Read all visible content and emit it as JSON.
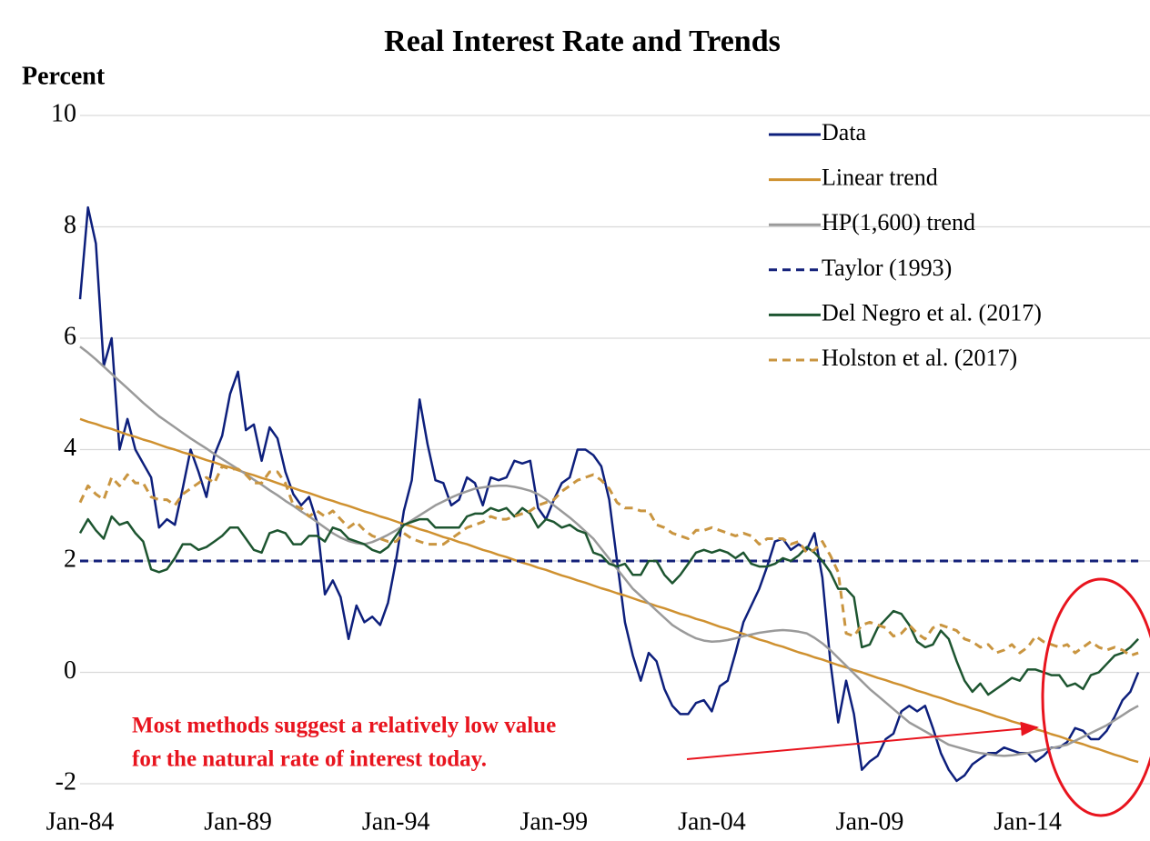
{
  "chart_data": {
    "type": "line",
    "title": "Real Interest Rate and Trends",
    "y_label": "Percent",
    "annotation": [
      "Most methods suggest a relatively low value",
      "for the natural rate of interest today."
    ],
    "ylim": [
      -2,
      10
    ],
    "yticks": [
      -2,
      0,
      2,
      4,
      6,
      8,
      10
    ],
    "grid": true,
    "legend": "top-right",
    "categories": [
      "Jan-84",
      null,
      null,
      null,
      null,
      null,
      null,
      null,
      null,
      null,
      null,
      null,
      null,
      null,
      null,
      null,
      null,
      null,
      null,
      null,
      "Jan-89",
      null,
      null,
      null,
      null,
      null,
      null,
      null,
      null,
      null,
      null,
      null,
      null,
      null,
      null,
      null,
      null,
      null,
      null,
      null,
      "Jan-94",
      null,
      null,
      null,
      null,
      null,
      null,
      null,
      null,
      null,
      null,
      null,
      null,
      null,
      null,
      null,
      null,
      null,
      null,
      null,
      "Jan-99",
      null,
      null,
      null,
      null,
      null,
      null,
      null,
      null,
      null,
      null,
      null,
      null,
      null,
      null,
      null,
      null,
      null,
      null,
      null,
      "Jan-04",
      null,
      null,
      null,
      null,
      null,
      null,
      null,
      null,
      null,
      null,
      null,
      null,
      null,
      null,
      null,
      null,
      null,
      null,
      null,
      "Jan-09",
      null,
      null,
      null,
      null,
      null,
      null,
      null,
      null,
      null,
      null,
      null,
      null,
      null,
      null,
      null,
      null,
      null,
      null,
      null,
      "Jan-14",
      null,
      null,
      null,
      null,
      null,
      null,
      null,
      null,
      null,
      null,
      null,
      null,
      null,
      null
    ],
    "series": [
      {
        "name": "Data",
        "color": "#0d1f7c",
        "style": "solid",
        "values": [
          6.7,
          8.35,
          7.7,
          5.5,
          6.0,
          4.0,
          4.55,
          4.0,
          3.75,
          3.5,
          2.6,
          2.75,
          2.65,
          3.3,
          4.0,
          3.6,
          3.15,
          3.9,
          4.25,
          5.0,
          5.4,
          4.35,
          4.45,
          3.8,
          4.4,
          4.2,
          3.6,
          3.2,
          3.0,
          3.15,
          2.7,
          1.4,
          1.65,
          1.35,
          0.6,
          1.2,
          0.9,
          1.0,
          0.85,
          1.25,
          2.0,
          2.9,
          3.45,
          4.9,
          4.1,
          3.45,
          3.4,
          3.0,
          3.1,
          3.5,
          3.4,
          3.0,
          3.5,
          3.45,
          3.5,
          3.8,
          3.75,
          3.8,
          2.95,
          2.75,
          3.1,
          3.4,
          3.5,
          4.0,
          4.0,
          3.9,
          3.7,
          3.1,
          2.0,
          0.9,
          0.3,
          -0.15,
          0.35,
          0.2,
          -0.3,
          -0.6,
          -0.75,
          -0.75,
          -0.55,
          -0.5,
          -0.7,
          -0.25,
          -0.15,
          0.35,
          0.9,
          1.2,
          1.5,
          1.9,
          2.35,
          2.4,
          2.2,
          2.3,
          2.2,
          2.5,
          1.7,
          0.2,
          -0.9,
          -0.15,
          -0.75,
          -1.75,
          -1.6,
          -1.5,
          -1.2,
          -1.1,
          -0.7,
          -0.6,
          -0.7,
          -0.6,
          -1.0,
          -1.45,
          -1.75,
          -1.95,
          -1.85,
          -1.65,
          -1.55,
          -1.45,
          -1.45,
          -1.35,
          -1.4,
          -1.45,
          -1.45,
          -1.6,
          -1.5,
          -1.35,
          -1.35,
          -1.25,
          -1.0,
          -1.05,
          -1.2,
          -1.2,
          -1.05,
          -0.8,
          -0.5,
          -0.35,
          0.0
        ]
      },
      {
        "name": "Linear trend",
        "color": "#cf9130",
        "style": "solid",
        "values": [
          4.55,
          4.5,
          4.46,
          4.41,
          4.37,
          4.32,
          4.27,
          4.23,
          4.18,
          4.14,
          4.09,
          4.04,
          4.0,
          3.95,
          3.91,
          3.86,
          3.81,
          3.77,
          3.72,
          3.68,
          3.63,
          3.58,
          3.54,
          3.49,
          3.45,
          3.4,
          3.35,
          3.31,
          3.26,
          3.22,
          3.17,
          3.12,
          3.08,
          3.03,
          2.99,
          2.94,
          2.89,
          2.85,
          2.8,
          2.76,
          2.71,
          2.66,
          2.62,
          2.57,
          2.53,
          2.48,
          2.43,
          2.39,
          2.34,
          2.3,
          2.25,
          2.2,
          2.16,
          2.11,
          2.07,
          2.02,
          1.97,
          1.93,
          1.88,
          1.84,
          1.79,
          1.74,
          1.7,
          1.65,
          1.61,
          1.56,
          1.51,
          1.47,
          1.42,
          1.38,
          1.33,
          1.28,
          1.24,
          1.19,
          1.15,
          1.1,
          1.05,
          1.01,
          0.96,
          0.92,
          0.87,
          0.82,
          0.78,
          0.73,
          0.69,
          0.64,
          0.59,
          0.55,
          0.5,
          0.46,
          0.41,
          0.36,
          0.32,
          0.27,
          0.23,
          0.18,
          0.13,
          0.09,
          0.04,
          0.0,
          -0.05,
          -0.1,
          -0.14,
          -0.19,
          -0.23,
          -0.28,
          -0.33,
          -0.37,
          -0.42,
          -0.46,
          -0.51,
          -0.56,
          -0.6,
          -0.65,
          -0.69,
          -0.74,
          -0.79,
          -0.83,
          -0.88,
          -0.92,
          -0.97,
          -1.02,
          -1.06,
          -1.11,
          -1.15,
          -1.2,
          -1.25,
          -1.29,
          -1.34,
          -1.38,
          -1.43,
          -1.48,
          -1.52,
          -1.57,
          -1.61
        ]
      },
      {
        "name": "HP(1,600) trend",
        "color": "#9a9a9a",
        "style": "solid",
        "values": [
          5.85,
          5.74,
          5.62,
          5.49,
          5.36,
          5.23,
          5.1,
          4.97,
          4.84,
          4.72,
          4.6,
          4.5,
          4.4,
          4.3,
          4.2,
          4.11,
          4.02,
          3.92,
          3.83,
          3.74,
          3.65,
          3.56,
          3.46,
          3.37,
          3.27,
          3.18,
          3.08,
          2.99,
          2.89,
          2.8,
          2.7,
          2.6,
          2.5,
          2.42,
          2.36,
          2.32,
          2.3,
          2.34,
          2.4,
          2.47,
          2.55,
          2.64,
          2.73,
          2.82,
          2.91,
          3.0,
          3.07,
          3.14,
          3.2,
          3.25,
          3.3,
          3.32,
          3.34,
          3.35,
          3.35,
          3.33,
          3.3,
          3.26,
          3.2,
          3.11,
          3.0,
          2.89,
          2.78,
          2.66,
          2.53,
          2.4,
          2.22,
          2.04,
          1.86,
          1.68,
          1.5,
          1.37,
          1.24,
          1.11,
          0.98,
          0.85,
          0.76,
          0.68,
          0.61,
          0.57,
          0.55,
          0.56,
          0.58,
          0.61,
          0.65,
          0.68,
          0.71,
          0.73,
          0.75,
          0.76,
          0.75,
          0.73,
          0.7,
          0.62,
          0.52,
          0.4,
          0.26,
          0.12,
          -0.02,
          -0.16,
          -0.3,
          -0.42,
          -0.54,
          -0.66,
          -0.78,
          -0.9,
          -0.98,
          -1.06,
          -1.14,
          -1.22,
          -1.3,
          -1.34,
          -1.38,
          -1.42,
          -1.45,
          -1.47,
          -1.49,
          -1.5,
          -1.49,
          -1.47,
          -1.45,
          -1.42,
          -1.39,
          -1.36,
          -1.33,
          -1.3,
          -1.23,
          -1.16,
          -1.09,
          -1.02,
          -0.95,
          -0.86,
          -0.77,
          -0.68,
          -0.6
        ]
      },
      {
        "name": "Taylor (1993)",
        "color": "#14217a",
        "style": "dashed",
        "values": [
          2,
          2,
          2,
          2,
          2,
          2,
          2,
          2,
          2,
          2,
          2,
          2,
          2,
          2,
          2,
          2,
          2,
          2,
          2,
          2,
          2,
          2,
          2,
          2,
          2,
          2,
          2,
          2,
          2,
          2,
          2,
          2,
          2,
          2,
          2,
          2,
          2,
          2,
          2,
          2,
          2,
          2,
          2,
          2,
          2,
          2,
          2,
          2,
          2,
          2,
          2,
          2,
          2,
          2,
          2,
          2,
          2,
          2,
          2,
          2,
          2,
          2,
          2,
          2,
          2,
          2,
          2,
          2,
          2,
          2,
          2,
          2,
          2,
          2,
          2,
          2,
          2,
          2,
          2,
          2,
          2,
          2,
          2,
          2,
          2,
          2,
          2,
          2,
          2,
          2,
          2,
          2,
          2,
          2,
          2,
          2,
          2,
          2,
          2,
          2,
          2,
          2,
          2,
          2,
          2,
          2,
          2,
          2,
          2,
          2,
          2,
          2,
          2,
          2,
          2,
          2,
          2,
          2,
          2,
          2,
          2,
          2,
          2,
          2,
          2,
          2,
          2,
          2,
          2,
          2,
          2,
          2,
          2,
          2,
          2
        ]
      },
      {
        "name": "Del Negro et al. (2017)",
        "color": "#1d5530",
        "style": "solid",
        "values": [
          2.5,
          2.75,
          2.55,
          2.4,
          2.8,
          2.65,
          2.7,
          2.5,
          2.35,
          1.85,
          1.8,
          1.85,
          2.05,
          2.3,
          2.3,
          2.2,
          2.25,
          2.35,
          2.45,
          2.6,
          2.6,
          2.4,
          2.2,
          2.15,
          2.5,
          2.55,
          2.5,
          2.3,
          2.3,
          2.45,
          2.45,
          2.35,
          2.6,
          2.55,
          2.4,
          2.35,
          2.3,
          2.2,
          2.15,
          2.25,
          2.45,
          2.65,
          2.7,
          2.75,
          2.75,
          2.6,
          2.6,
          2.6,
          2.6,
          2.8,
          2.85,
          2.85,
          2.95,
          2.9,
          2.95,
          2.8,
          2.95,
          2.85,
          2.6,
          2.75,
          2.7,
          2.6,
          2.65,
          2.55,
          2.5,
          2.15,
          2.1,
          1.95,
          1.9,
          1.95,
          1.75,
          1.75,
          2.0,
          2.0,
          1.75,
          1.6,
          1.75,
          1.95,
          2.15,
          2.2,
          2.15,
          2.2,
          2.15,
          2.05,
          2.15,
          1.95,
          1.9,
          1.9,
          1.95,
          2.05,
          2.0,
          2.1,
          2.25,
          2.15,
          2.0,
          1.8,
          1.5,
          1.5,
          1.35,
          0.45,
          0.5,
          0.8,
          0.95,
          1.1,
          1.05,
          0.85,
          0.55,
          0.45,
          0.5,
          0.75,
          0.6,
          0.2,
          -0.15,
          -0.35,
          -0.2,
          -0.4,
          -0.3,
          -0.2,
          -0.1,
          -0.15,
          0.05,
          0.05,
          0.0,
          -0.05,
          -0.05,
          -0.25,
          -0.2,
          -0.3,
          -0.05,
          0.0,
          0.15,
          0.3,
          0.35,
          0.45,
          0.6
        ]
      },
      {
        "name": "Holston et al. (2017)",
        "color": "#c99540",
        "style": "dashed",
        "values": [
          3.05,
          3.35,
          3.2,
          3.1,
          3.5,
          3.35,
          3.55,
          3.4,
          3.4,
          3.15,
          3.1,
          3.1,
          3.0,
          3.2,
          3.3,
          3.4,
          3.5,
          3.4,
          3.7,
          3.65,
          3.65,
          3.55,
          3.4,
          3.4,
          3.6,
          3.6,
          3.4,
          3.0,
          2.95,
          2.8,
          2.9,
          2.8,
          2.9,
          2.75,
          2.6,
          2.7,
          2.55,
          2.45,
          2.4,
          2.35,
          2.35,
          2.5,
          2.4,
          2.35,
          2.3,
          2.3,
          2.3,
          2.4,
          2.5,
          2.6,
          2.65,
          2.7,
          2.8,
          2.75,
          2.75,
          2.8,
          2.85,
          2.9,
          3.0,
          3.05,
          3.1,
          3.25,
          3.35,
          3.45,
          3.5,
          3.55,
          3.45,
          3.3,
          3.05,
          2.95,
          2.95,
          2.9,
          2.9,
          2.65,
          2.6,
          2.5,
          2.45,
          2.4,
          2.55,
          2.55,
          2.6,
          2.55,
          2.5,
          2.45,
          2.5,
          2.45,
          2.3,
          2.4,
          2.4,
          2.4,
          2.3,
          2.35,
          2.15,
          2.2,
          2.35,
          2.1,
          1.8,
          0.7,
          0.65,
          0.85,
          0.9,
          0.85,
          0.8,
          0.65,
          0.7,
          0.85,
          0.7,
          0.6,
          0.8,
          0.85,
          0.8,
          0.75,
          0.6,
          0.55,
          0.45,
          0.5,
          0.35,
          0.4,
          0.5,
          0.35,
          0.45,
          0.65,
          0.55,
          0.5,
          0.45,
          0.5,
          0.35,
          0.45,
          0.55,
          0.45,
          0.4,
          0.45,
          0.4,
          0.3,
          0.35
        ]
      }
    ]
  }
}
